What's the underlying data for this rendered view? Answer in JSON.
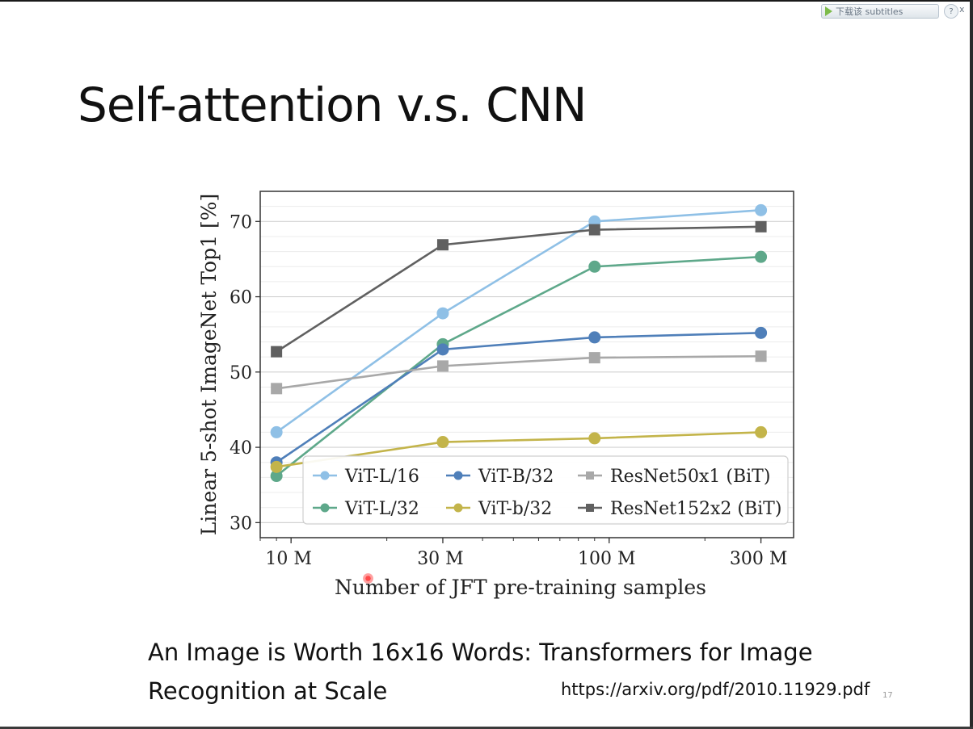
{
  "player": {
    "subtitle_button": "下载该 subtitles",
    "help": "?",
    "close": "x"
  },
  "slide": {
    "title": "Self-attention v.s. CNN",
    "caption": "An Image is Worth 16x16 Words: Transformers for Image Recognition at Scale",
    "url": "https://arxiv.org/pdf/2010.11929.pdf",
    "page_number": "17"
  },
  "chart_data": {
    "type": "line",
    "xlabel": "Number of JFT pre-training samples",
    "ylabel": "Linear 5-shot ImageNet Top1 [%]",
    "x_scale": "log",
    "x": [
      9,
      30,
      90,
      300
    ],
    "x_ticks": [
      10,
      30,
      100,
      300
    ],
    "x_tick_labels": [
      "10 M",
      "30 M",
      "100 M",
      "300 M"
    ],
    "x_unit": "M",
    "ylim": [
      28,
      74
    ],
    "y_ticks": [
      30,
      40,
      50,
      60,
      70
    ],
    "grid": true,
    "legend": "lower-right",
    "series": [
      {
        "name": "ViT-L/16",
        "color": "#8fc0e6",
        "marker": "circle",
        "values": [
          42,
          57.8,
          70,
          71.5
        ]
      },
      {
        "name": "ViT-L/32",
        "color": "#5ea88a",
        "marker": "circle",
        "values": [
          36.2,
          53.7,
          64,
          65.3
        ]
      },
      {
        "name": "ViT-B/32",
        "color": "#4f7fb9",
        "marker": "circle",
        "values": [
          38,
          53,
          54.6,
          55.2
        ]
      },
      {
        "name": "ViT-b/32",
        "color": "#c3b44a",
        "marker": "circle",
        "values": [
          37.4,
          40.7,
          41.2,
          42
        ]
      },
      {
        "name": "ResNet50x1 (BiT)",
        "color": "#a8a8a8",
        "marker": "square",
        "values": [
          47.8,
          50.8,
          51.9,
          52.1
        ]
      },
      {
        "name": "ResNet152x2 (BiT)",
        "color": "#606060",
        "marker": "square",
        "values": [
          52.7,
          66.9,
          68.9,
          69.3
        ]
      }
    ],
    "legend_order": [
      "ViT-L/16",
      "ViT-B/32",
      "ResNet50x1 (BiT)",
      "ViT-L/32",
      "ViT-b/32",
      "ResNet152x2 (BiT)"
    ]
  }
}
